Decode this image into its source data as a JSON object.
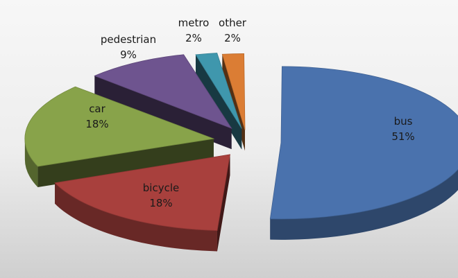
{
  "chart_data": {
    "type": "pie",
    "style": "3d-exploded",
    "categories": [
      "bus",
      "bicycle",
      "car",
      "pedestrian",
      "metro",
      "other"
    ],
    "values": [
      51,
      18,
      18,
      9,
      2,
      2
    ],
    "value_labels": [
      "51%",
      "18%",
      "18%",
      "9%",
      "2%",
      "2%"
    ],
    "colors": [
      "#4a72ad",
      "#a8403d",
      "#88a34a",
      "#6e548f",
      "#3f97ad",
      "#db7d34"
    ],
    "title": "",
    "legend": "none",
    "data_labels": "inside-or-above"
  }
}
